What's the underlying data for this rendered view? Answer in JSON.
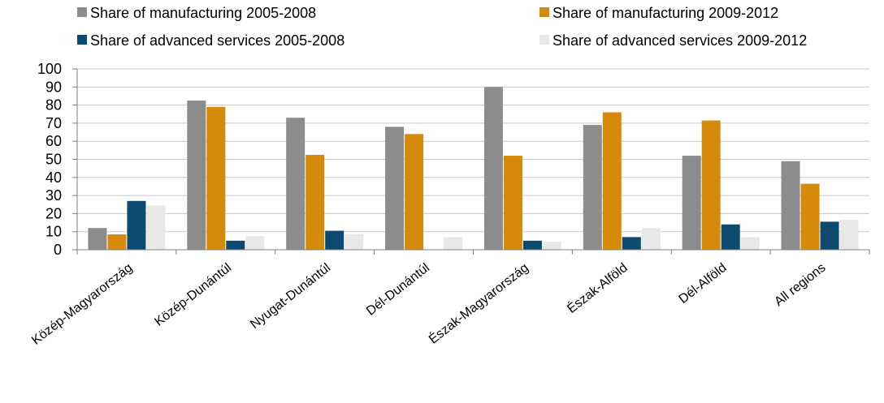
{
  "chart_data": {
    "type": "bar",
    "title": "",
    "xlabel": "",
    "ylabel": "",
    "ylim": [
      0,
      100
    ],
    "yticks": [
      0,
      10,
      20,
      30,
      40,
      50,
      60,
      70,
      80,
      90,
      100
    ],
    "grid": true,
    "legend_position": "top",
    "categories": [
      "Közép-Magyarország",
      "Közép-Dunántúl",
      "Nyugat-Dunántúl",
      "Dél-Dunántúl",
      "Észak-Magyarország",
      "Észak-Alföld",
      "Dél-Alföld",
      "All regions"
    ],
    "series": [
      {
        "name": "Share of manufacturing 2005-2008",
        "color": "#8c8c8c",
        "values": [
          12,
          82.5,
          73,
          68,
          90,
          69,
          52,
          49
        ]
      },
      {
        "name": "Share of manufacturing 2009-2012",
        "color": "#d58a0b",
        "values": [
          8.5,
          79,
          52.5,
          64,
          52,
          76,
          71.5,
          36.5
        ]
      },
      {
        "name": "Share of advanced services 2005-2008",
        "color": "#0d4a70",
        "values": [
          27,
          5,
          10.5,
          0,
          5,
          7,
          14,
          15.5
        ]
      },
      {
        "name": "Share of advanced services 2009-2012",
        "color": "#e8e8e8",
        "values": [
          24.5,
          7.5,
          8.5,
          7,
          4.5,
          12,
          7,
          16.5
        ]
      }
    ]
  }
}
